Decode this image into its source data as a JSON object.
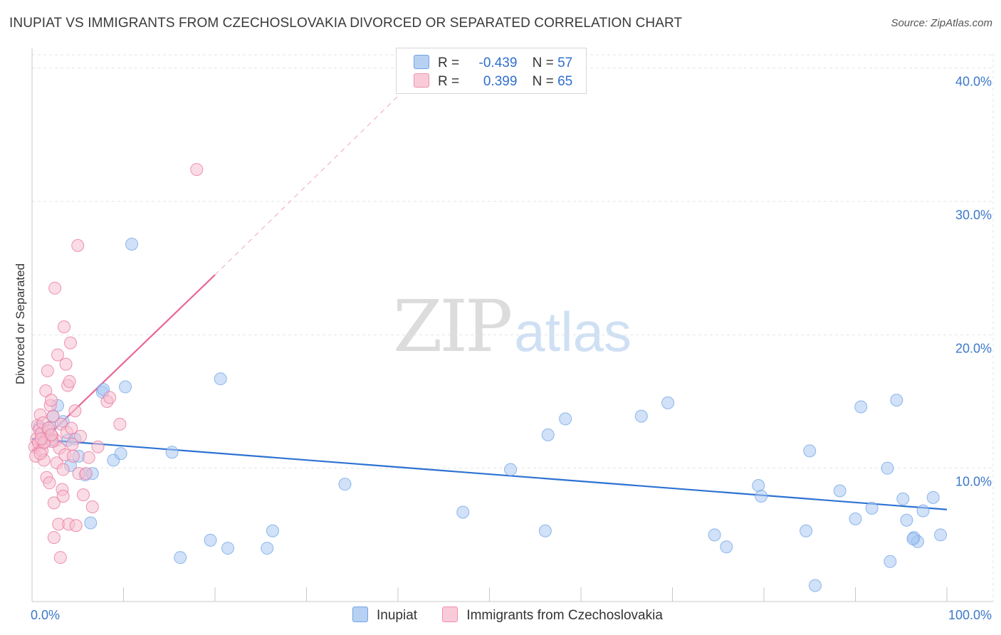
{
  "title": "INUPIAT VS IMMIGRANTS FROM CZECHOSLOVAKIA DIVORCED OR SEPARATED CORRELATION CHART",
  "source": "Source: ZipAtlas.com",
  "watermark": {
    "zip": "ZIP",
    "atlas": "atlas"
  },
  "legend_top": {
    "rows": [
      {
        "r_label": "R =",
        "r_value": "-0.439",
        "n_label": "N =",
        "n_value": "57",
        "color": "#6fa3e6"
      },
      {
        "r_label": "R =",
        "r_value": "0.399",
        "n_label": "N =",
        "n_value": "65",
        "color": "#ee8fb0"
      }
    ]
  },
  "legend_bottom": [
    {
      "label": "Inupiat",
      "color": "#a9c8f2"
    },
    {
      "label": "Immigrants from Czechoslovakia",
      "color": "#f6bfd0"
    }
  ],
  "chart_data": {
    "type": "scatter",
    "title": "INUPIAT VS IMMIGRANTS FROM CZECHOSLOVAKIA DIVORCED OR SEPARATED CORRELATION CHART",
    "xlabel": "",
    "ylabel": "Divorced or Separated",
    "xlim": [
      0,
      100
    ],
    "ylim": [
      0,
      41
    ],
    "x_tick_labels": [
      "0.0%",
      "100.0%"
    ],
    "y_ticks": [
      10,
      20,
      30,
      40
    ],
    "y_tick_labels": [
      "10.0%",
      "20.0%",
      "30.0%",
      "40.0%"
    ],
    "grid": true,
    "legend_placement": "top-center",
    "series": [
      {
        "name": "Inupiat",
        "color": "#6fa3e6",
        "fill": "#a9c8f2",
        "trend": {
          "x": [
            0,
            100
          ],
          "y": [
            12.2,
            6.9
          ]
        },
        "points": [
          [
            0.8,
            13.1
          ],
          [
            1.5,
            12.3
          ],
          [
            2.0,
            13.1
          ],
          [
            2.2,
            12.1
          ],
          [
            2.3,
            13.9
          ],
          [
            2.8,
            14.7
          ],
          [
            3.4,
            13.5
          ],
          [
            3.9,
            12.1
          ],
          [
            4.2,
            10.2
          ],
          [
            4.7,
            12.2
          ],
          [
            5.1,
            10.9
          ],
          [
            5.8,
            9.5
          ],
          [
            6.4,
            5.9
          ],
          [
            6.6,
            9.6
          ],
          [
            7.7,
            15.7
          ],
          [
            7.8,
            15.9
          ],
          [
            8.9,
            10.6
          ],
          [
            9.7,
            11.1
          ],
          [
            10.2,
            16.1
          ],
          [
            10.9,
            26.8
          ],
          [
            15.3,
            11.2
          ],
          [
            16.2,
            3.3
          ],
          [
            19.5,
            4.6
          ],
          [
            20.6,
            16.7
          ],
          [
            21.4,
            4.0
          ],
          [
            25.7,
            4.0
          ],
          [
            26.3,
            5.3
          ],
          [
            34.2,
            8.8
          ],
          [
            47.1,
            6.7
          ],
          [
            52.3,
            9.9
          ],
          [
            56.1,
            5.3
          ],
          [
            56.4,
            12.5
          ],
          [
            58.3,
            13.7
          ],
          [
            66.6,
            13.9
          ],
          [
            69.5,
            14.9
          ],
          [
            74.6,
            5.0
          ],
          [
            75.9,
            4.1
          ],
          [
            79.4,
            8.7
          ],
          [
            79.7,
            7.9
          ],
          [
            84.6,
            5.3
          ],
          [
            85.0,
            11.3
          ],
          [
            85.6,
            1.2
          ],
          [
            88.3,
            8.3
          ],
          [
            90.0,
            6.2
          ],
          [
            90.6,
            14.6
          ],
          [
            91.8,
            7.0
          ],
          [
            93.5,
            10.0
          ],
          [
            93.8,
            3.0
          ],
          [
            94.5,
            15.1
          ],
          [
            95.2,
            7.7
          ],
          [
            95.6,
            6.1
          ],
          [
            96.4,
            4.8
          ],
          [
            96.8,
            4.5
          ],
          [
            97.4,
            6.8
          ],
          [
            98.5,
            7.8
          ],
          [
            99.3,
            5.0
          ],
          [
            96.3,
            4.7
          ]
        ]
      },
      {
        "name": "Immigrants from Czechoslovakia",
        "color": "#e8729c",
        "fill": "#f6bfd0",
        "trend": {
          "x": [
            0,
            20
          ],
          "y": [
            11.3,
            24.5
          ]
        },
        "trend_extension": {
          "x": [
            20,
            40
          ],
          "y": [
            24.5,
            37.9
          ]
        },
        "points": [
          [
            0.3,
            11.6
          ],
          [
            0.4,
            10.9
          ],
          [
            0.5,
            12.2
          ],
          [
            0.6,
            13.2
          ],
          [
            0.7,
            11.9
          ],
          [
            0.8,
            12.9
          ],
          [
            0.9,
            14.0
          ],
          [
            1.0,
            12.6
          ],
          [
            1.1,
            11.3
          ],
          [
            1.2,
            13.4
          ],
          [
            1.3,
            10.6
          ],
          [
            1.4,
            12.0
          ],
          [
            1.5,
            15.8
          ],
          [
            1.6,
            9.3
          ],
          [
            1.7,
            17.3
          ],
          [
            1.8,
            12.8
          ],
          [
            1.9,
            8.9
          ],
          [
            2.0,
            14.7
          ],
          [
            2.1,
            15.1
          ],
          [
            2.2,
            12.4
          ],
          [
            2.3,
            13.9
          ],
          [
            2.4,
            7.4
          ],
          [
            2.5,
            23.5
          ],
          [
            2.6,
            12.1
          ],
          [
            2.7,
            10.4
          ],
          [
            2.8,
            18.5
          ],
          [
            2.9,
            5.8
          ],
          [
            3.0,
            11.5
          ],
          [
            3.1,
            3.3
          ],
          [
            3.2,
            13.3
          ],
          [
            3.3,
            8.4
          ],
          [
            3.4,
            7.9
          ],
          [
            3.5,
            20.6
          ],
          [
            3.6,
            11.0
          ],
          [
            3.7,
            17.8
          ],
          [
            3.8,
            12.7
          ],
          [
            3.9,
            16.2
          ],
          [
            4.0,
            5.8
          ],
          [
            4.1,
            16.5
          ],
          [
            4.2,
            19.4
          ],
          [
            4.3,
            13.0
          ],
          [
            4.4,
            11.8
          ],
          [
            4.5,
            10.9
          ],
          [
            4.7,
            14.3
          ],
          [
            4.8,
            5.7
          ],
          [
            5.0,
            26.7
          ],
          [
            5.1,
            9.6
          ],
          [
            5.3,
            12.4
          ],
          [
            5.6,
            8.0
          ],
          [
            5.9,
            9.6
          ],
          [
            6.2,
            10.8
          ],
          [
            6.6,
            7.1
          ],
          [
            7.2,
            11.6
          ],
          [
            8.2,
            15.0
          ],
          [
            8.5,
            15.3
          ],
          [
            9.6,
            13.3
          ],
          [
            18.0,
            32.4
          ],
          [
            2.2,
            12.0
          ],
          [
            1.3,
            11.9
          ],
          [
            0.9,
            11.1
          ],
          [
            2.4,
            4.8
          ],
          [
            3.4,
            9.9
          ],
          [
            1.8,
            13.0
          ],
          [
            1.0,
            12.2
          ],
          [
            2.1,
            12.5
          ]
        ]
      }
    ]
  }
}
